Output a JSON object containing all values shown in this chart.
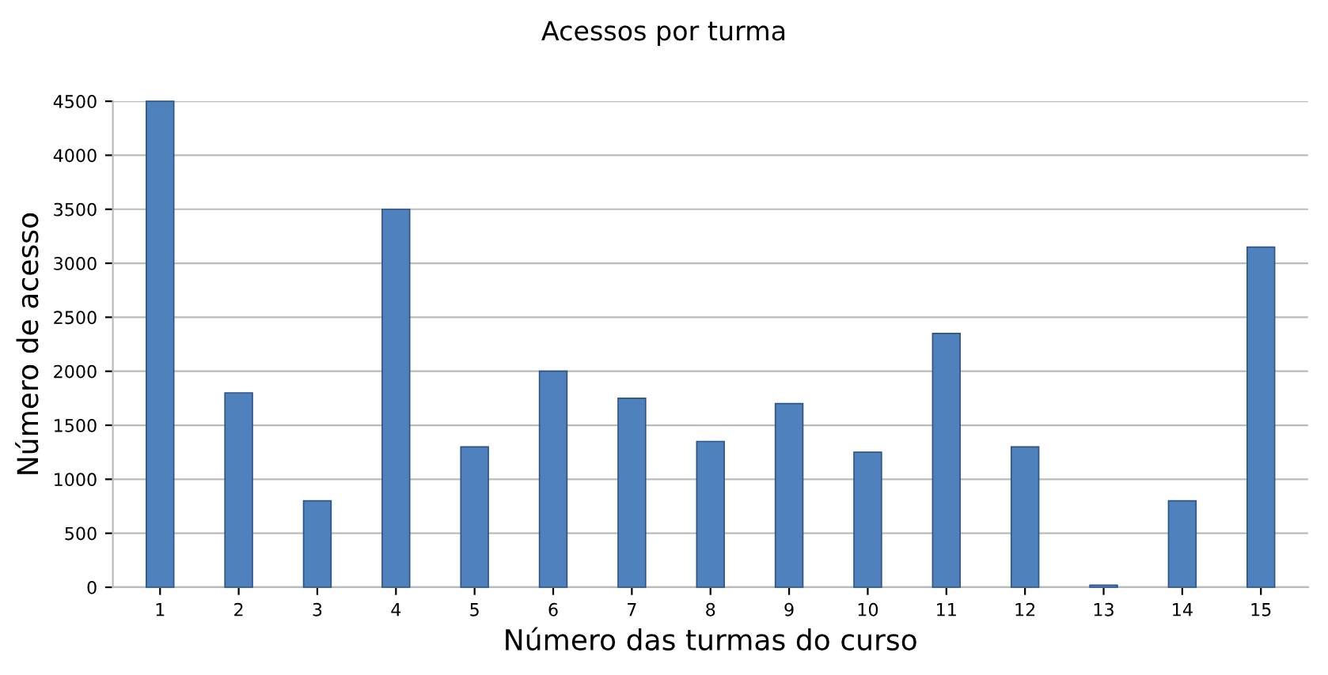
{
  "chart_data": {
    "type": "bar",
    "title": "Acessos por turma",
    "xlabel": "Número das turmas do curso",
    "ylabel": "Número de acesso",
    "categories": [
      "1",
      "2",
      "3",
      "4",
      "5",
      "6",
      "7",
      "8",
      "9",
      "10",
      "11",
      "12",
      "13",
      "14",
      "15"
    ],
    "values": [
      4500,
      1800,
      800,
      3500,
      1300,
      2000,
      1750,
      1350,
      1700,
      1250,
      2350,
      1300,
      20,
      800,
      3150
    ],
    "color": "#4f81bd",
    "ylim": [
      0,
      4500
    ],
    "yticks": [
      0,
      500,
      1000,
      1500,
      2000,
      2500,
      3000,
      3500,
      4000,
      4500
    ],
    "grid": "y"
  }
}
